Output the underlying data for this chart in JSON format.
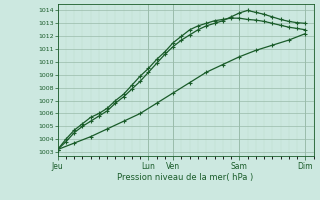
{
  "title": "Pression niveau de la mer( hPa )",
  "bg_color": "#cce8e0",
  "line_color": "#1a5c2a",
  "grid_color_major": "#99bbaa",
  "grid_color_minor": "#bbddcc",
  "yticks": [
    1003,
    1004,
    1005,
    1006,
    1007,
    1008,
    1009,
    1010,
    1011,
    1012,
    1013,
    1014
  ],
  "ylim": [
    1002.7,
    1014.5
  ],
  "xtick_labels": [
    "Jeu",
    "Lun",
    "Ven",
    "Sam",
    "Dim"
  ],
  "xtick_positions": [
    0,
    5.5,
    7,
    11,
    15
  ],
  "xlim": [
    0,
    15.5
  ],
  "vlines": [
    0,
    5.5,
    7,
    11,
    15
  ],
  "line1_x": [
    0,
    0.5,
    1,
    1.5,
    2,
    2.5,
    3,
    3.5,
    4,
    4.5,
    5,
    5.5,
    6,
    6.5,
    7,
    7.5,
    8,
    8.5,
    9,
    9.5,
    10,
    10.5,
    11,
    11.5,
    12,
    12.5,
    13,
    13.5,
    14,
    14.5,
    15
  ],
  "line1_y": [
    1003.2,
    1003.8,
    1004.5,
    1005.0,
    1005.4,
    1005.8,
    1006.2,
    1006.8,
    1007.3,
    1007.9,
    1008.5,
    1009.2,
    1009.9,
    1010.6,
    1011.2,
    1011.7,
    1012.1,
    1012.5,
    1012.8,
    1013.0,
    1013.2,
    1013.5,
    1013.8,
    1014.0,
    1013.85,
    1013.7,
    1013.5,
    1013.3,
    1013.15,
    1013.05,
    1013.0
  ],
  "line2_x": [
    0,
    0.5,
    1,
    1.5,
    2,
    2.5,
    3,
    3.5,
    4,
    4.5,
    5,
    5.5,
    6,
    6.5,
    7,
    7.5,
    8,
    8.5,
    9,
    9.5,
    10,
    10.5,
    11,
    11.5,
    12,
    12.5,
    13,
    13.5,
    14,
    14.5,
    15
  ],
  "line2_y": [
    1003.2,
    1004.0,
    1004.7,
    1005.2,
    1005.7,
    1006.0,
    1006.4,
    1007.0,
    1007.5,
    1008.2,
    1008.9,
    1009.5,
    1010.2,
    1010.8,
    1011.5,
    1012.0,
    1012.5,
    1012.8,
    1013.0,
    1013.2,
    1013.3,
    1013.4,
    1013.4,
    1013.3,
    1013.25,
    1013.15,
    1013.0,
    1012.85,
    1012.7,
    1012.6,
    1012.5
  ],
  "line3_x": [
    0,
    1,
    2,
    3,
    4,
    5,
    6,
    7,
    8,
    9,
    10,
    11,
    12,
    13,
    14,
    15
  ],
  "line3_y": [
    1003.2,
    1003.7,
    1004.2,
    1004.8,
    1005.4,
    1006.0,
    1006.8,
    1007.6,
    1008.4,
    1009.2,
    1009.8,
    1010.4,
    1010.9,
    1011.3,
    1011.7,
    1012.2
  ]
}
